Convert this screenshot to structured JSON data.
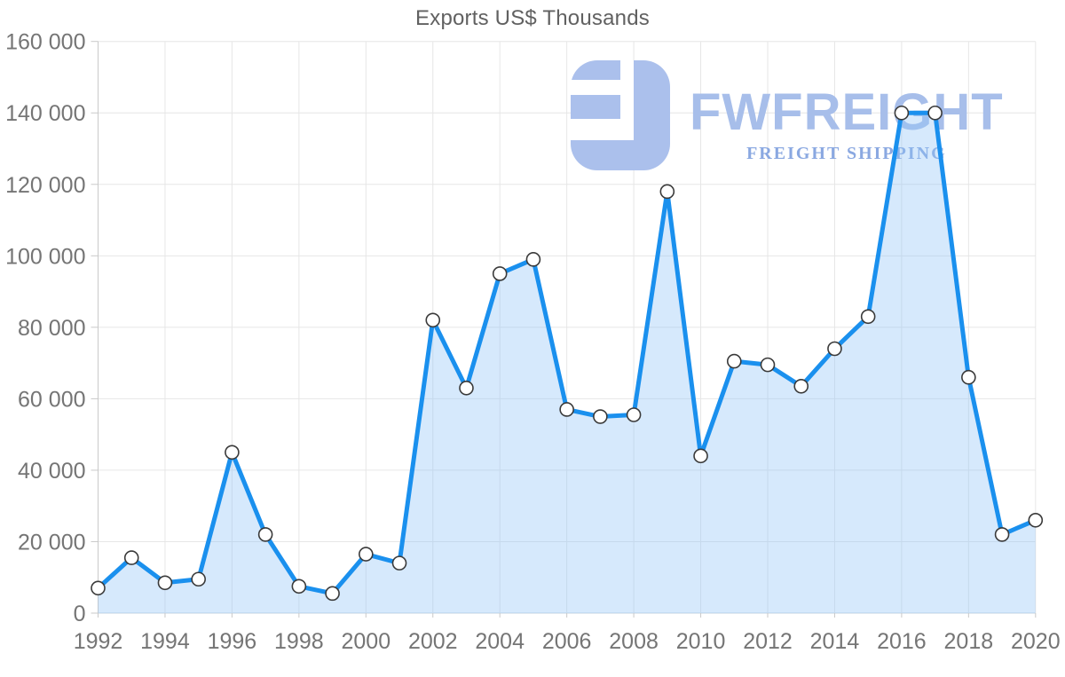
{
  "title": "Exports US$ Thousands",
  "watermark": {
    "brand": "FWFREIGHT",
    "tagline": "FREIGHT SHIPPING",
    "icon": "fwfreight-logo-icon"
  },
  "colors": {
    "line": "#1a90ee",
    "area_fill": "rgba(147,197,248,0.38)",
    "marker_fill": "#ffffff",
    "marker_stroke": "#3a3a3a",
    "gridline": "#e6e6e6",
    "axis_line": "#c9c9c9",
    "bottom_axis_line": "#c4d3e0",
    "tick": "#c9c9c9",
    "label_text": "#757575",
    "title_text": "#616161",
    "watermark_brand": "#a7beea",
    "watermark_tagline": "#8aa8e1"
  },
  "chart_data": {
    "type": "area",
    "title": "Exports US$ Thousands",
    "xlabel": "",
    "ylabel": "",
    "x": [
      1992,
      1993,
      1994,
      1995,
      1996,
      1997,
      1998,
      1999,
      2000,
      2001,
      2002,
      2003,
      2004,
      2005,
      2006,
      2007,
      2008,
      2009,
      2010,
      2011,
      2012,
      2013,
      2014,
      2015,
      2016,
      2017,
      2018,
      2019,
      2020
    ],
    "values": [
      7000,
      15500,
      8500,
      9500,
      45000,
      22000,
      7500,
      5500,
      16500,
      14000,
      82000,
      63000,
      95000,
      99000,
      57000,
      55000,
      55500,
      118000,
      44000,
      70500,
      69500,
      63500,
      74000,
      83000,
      140000,
      140000,
      66000,
      22000,
      26000
    ],
    "ylim": [
      0,
      160000
    ],
    "xlim": [
      1992,
      2020
    ],
    "y_ticks": [
      0,
      20000,
      40000,
      60000,
      80000,
      100000,
      120000,
      140000,
      160000
    ],
    "y_tick_labels": [
      "0",
      "20 000",
      "40 000",
      "60 000",
      "80 000",
      "100 000",
      "120 000",
      "140 000",
      "160 000"
    ],
    "x_ticks": [
      1992,
      1994,
      1996,
      1998,
      2000,
      2002,
      2004,
      2006,
      2008,
      2010,
      2012,
      2014,
      2016,
      2018,
      2020
    ],
    "x_tick_labels": [
      "1992",
      "1994",
      "1996",
      "1998",
      "2000",
      "2002",
      "2004",
      "2006",
      "2008",
      "2010",
      "2012",
      "2014",
      "2016",
      "2018",
      "2020"
    ],
    "grid": true,
    "legend": false,
    "marker": "circle-white",
    "line_width": 5
  }
}
